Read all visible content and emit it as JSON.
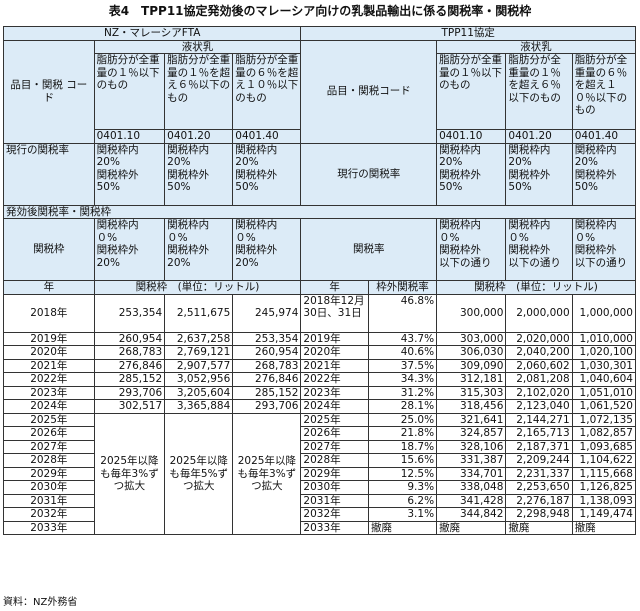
{
  "title": "表4　TPP11協定発効後のマレーシア向けの乳製品輸出に係る関税率・関税枠",
  "header": {
    "nz_fta": "NZ・マレーシアFTA",
    "tpp11": "TPP11協定",
    "liquid_milk": "液状乳",
    "hs_label_left": "品目・関税\nコード",
    "hs_label_right": "品目・関税コード",
    "fat_cols_left": [
      "脂肪分が全重量の１％以下のもの",
      "脂肪分が全重量の１％を超え６％以下のもの",
      "脂肪分が全重量の６％を超え１０％以下のもの"
    ],
    "fat_cols_right": [
      "脂肪分が全重量の１％以下のもの",
      "脂肪分が全重量の１％を超え６％以下のもの",
      "脂肪分が全重量の６％を超え１０％以下のもの"
    ],
    "codes": [
      "0401.10",
      "0401.20",
      "0401.40"
    ]
  },
  "current_rate": {
    "label": "現行の関税率",
    "left_cells": [
      "関税枠内\n20%\n関税枠外\n50%",
      "関税枠内\n20%\n関税枠外\n50%",
      "関税枠内\n20%\n関税枠外\n50%"
    ],
    "right_label": "現行の関税率",
    "right_cells": [
      "関税枠内\n20%\n関税枠外\n50%",
      "関税枠内\n20%\n関税枠外\n50%",
      "関税枠内\n20%\n関税枠外\n50%"
    ]
  },
  "post_effect": {
    "label": "発効後関税率・関税枠",
    "quota_label": "関税枠",
    "left_cells": [
      "関税枠内\n０%\n関税枠外\n20%",
      "関税枠内\n０%\n関税枠外\n20%",
      "関税枠内\n０%\n関税枠外\n20%"
    ],
    "rate_label": "関税率",
    "right_cells": [
      "関税枠内\n０%\n関税枠外\n以下の通り",
      "関税枠内\n０%\n関税枠外\n以下の通り",
      "関税枠内\n０%\n関税枠外\n以下の通り"
    ]
  },
  "columns": {
    "year": "年",
    "quota_left": "関税枠　(単位：リットル)",
    "year_right": "年",
    "out_rate": "枠外関税率",
    "quota_right": "関税枠　(単位：リットル)"
  },
  "left_rows": [
    {
      "year": "2018年",
      "v": [
        "253,354",
        "2,511,675",
        "245,974"
      ]
    },
    {
      "year": "2019年",
      "v": [
        "260,954",
        "2,637,258",
        "253,354"
      ]
    },
    {
      "year": "2020年",
      "v": [
        "268,783",
        "2,769,121",
        "260,954"
      ]
    },
    {
      "year": "2021年",
      "v": [
        "276,846",
        "2,907,577",
        "268,783"
      ]
    },
    {
      "year": "2022年",
      "v": [
        "285,152",
        "3,052,956",
        "276,846"
      ]
    },
    {
      "year": "2023年",
      "v": [
        "293,706",
        "3,205,604",
        "285,152"
      ]
    },
    {
      "year": "2024年",
      "v": [
        "302,517",
        "3,365,884",
        "293,706"
      ]
    },
    {
      "year": "2025年"
    },
    {
      "year": "2026年"
    },
    {
      "year": "2027年"
    },
    {
      "year": "2028年"
    },
    {
      "year": "2029年"
    },
    {
      "year": "2030年"
    },
    {
      "year": "2031年"
    },
    {
      "year": "2032年"
    },
    {
      "year": "2033年"
    }
  ],
  "growth_notes": [
    "2025年以降も毎年3%ずつ拡大",
    "2025年以降も毎年5%ずつ拡大",
    "2025年以降も毎年3%ずつ拡大"
  ],
  "right_rows": [
    {
      "year": "2018年12月30日、31日",
      "rate": "46.8%",
      "v": [
        "300,000",
        "2,000,000",
        "1,000,000"
      ]
    },
    {
      "year": "2019年",
      "rate": "43.7%",
      "v": [
        "303,000",
        "2,020,000",
        "1,010,000"
      ]
    },
    {
      "year": "2020年",
      "rate": "40.6%",
      "v": [
        "306,030",
        "2,040,200",
        "1,020,100"
      ]
    },
    {
      "year": "2021年",
      "rate": "37.5%",
      "v": [
        "309,090",
        "2,060,602",
        "1,030,301"
      ]
    },
    {
      "year": "2022年",
      "rate": "34.3%",
      "v": [
        "312,181",
        "2,081,208",
        "1,040,604"
      ]
    },
    {
      "year": "2023年",
      "rate": "31.2%",
      "v": [
        "315,303",
        "2,102,020",
        "1,051,010"
      ]
    },
    {
      "year": "2024年",
      "rate": "28.1%",
      "v": [
        "318,456",
        "2,123,040",
        "1,061,520"
      ]
    },
    {
      "year": "2025年",
      "rate": "25.0%",
      "v": [
        "321,641",
        "2,144,271",
        "1,072,135"
      ]
    },
    {
      "year": "2026年",
      "rate": "21.8%",
      "v": [
        "324,857",
        "2,165,713",
        "1,082,857"
      ]
    },
    {
      "year": "2027年",
      "rate": "18.7%",
      "v": [
        "328,106",
        "2,187,371",
        "1,093,685"
      ]
    },
    {
      "year": "2028年",
      "rate": "15.6%",
      "v": [
        "331,387",
        "2,209,244",
        "1,104,622"
      ]
    },
    {
      "year": "2029年",
      "rate": "12.5%",
      "v": [
        "334,701",
        "2,231,337",
        "1,115,668"
      ]
    },
    {
      "year": "2030年",
      "rate": "9.3%",
      "v": [
        "338,048",
        "2,253,650",
        "1,126,825"
      ]
    },
    {
      "year": "2031年",
      "rate": "6.2%",
      "v": [
        "341,428",
        "2,276,187",
        "1,138,093"
      ]
    },
    {
      "year": "2032年",
      "rate": "3.1%",
      "v": [
        "344,842",
        "2,298,948",
        "1,149,474"
      ]
    },
    {
      "year": "2033年",
      "rate": "撤廃",
      "v": [
        "撤廃",
        "撤廃",
        "撤廃"
      ]
    }
  ],
  "source_note": "資料：NZ外務省",
  "colors": {
    "header_fill": "#dcebf7",
    "border": "#333333"
  }
}
